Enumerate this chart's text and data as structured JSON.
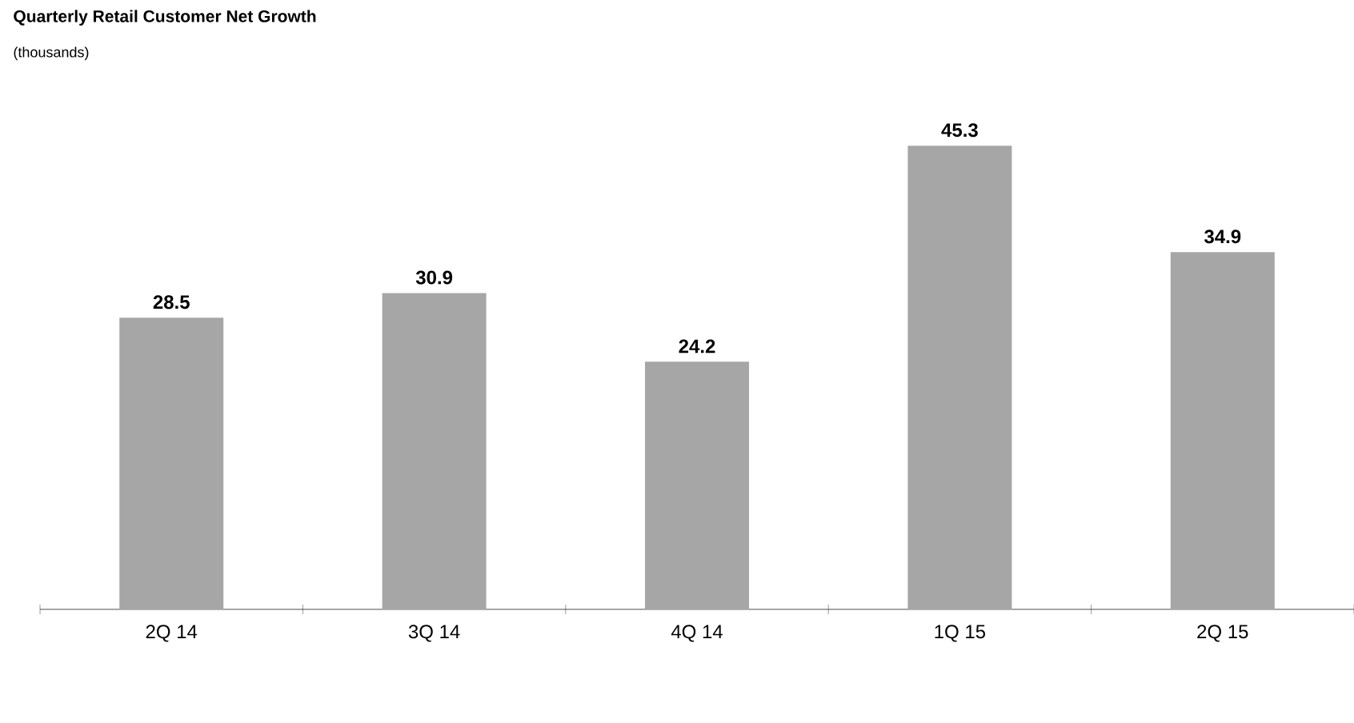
{
  "chart_data": {
    "type": "bar",
    "title": "Quarterly Retail Customer Net Growth",
    "subtitle": "(thousands)",
    "categories": [
      "2Q 14",
      "3Q 14",
      "4Q 14",
      "1Q 15",
      "2Q 15"
    ],
    "values": [
      28.5,
      30.9,
      24.2,
      45.3,
      34.9
    ],
    "color": "#a6a6a6",
    "data_labels": true,
    "tick_labels": "x"
  }
}
